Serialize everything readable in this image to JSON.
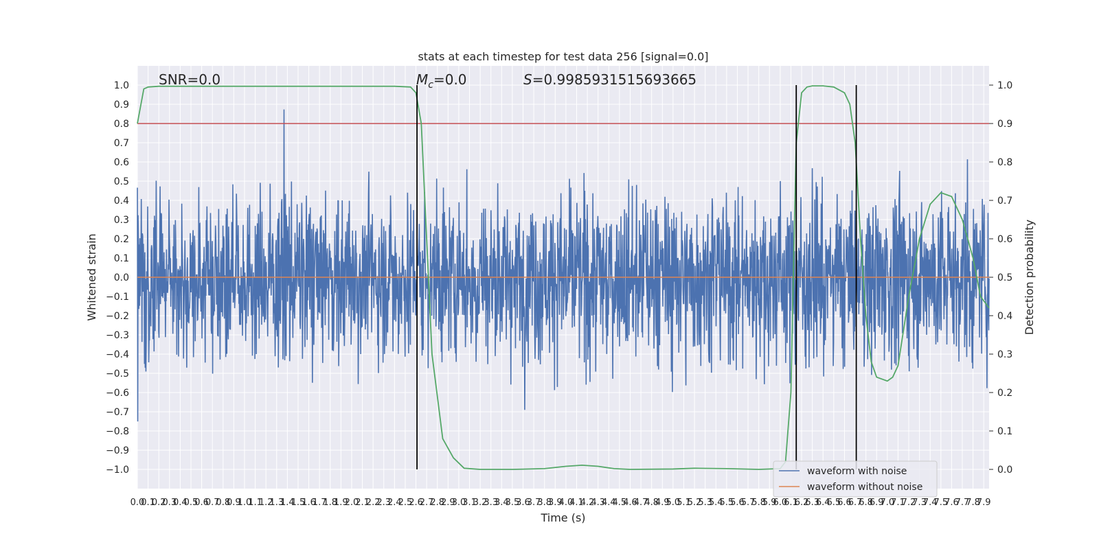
{
  "chart_data": {
    "type": "line",
    "title": "stats at each timestep for test data 256 [signal=0.0]",
    "xlabel": "Time (s)",
    "ylabel": "Whitened strain",
    "ylabel_right": "Detection probability",
    "xlim": [
      0.0,
      7.95
    ],
    "ylim": [
      -1.1,
      1.1
    ],
    "ylim_right": [
      -0.05,
      1.05
    ],
    "x_ticks": [
      "0.0",
      "0.1",
      "0.2",
      "0.3",
      "0.4",
      "0.5",
      "0.6",
      "0.7",
      "0.8",
      "0.9",
      "1.0",
      "1.1",
      "1.2",
      "1.3",
      "1.4",
      "1.5",
      "1.6",
      "1.7",
      "1.8",
      "1.9",
      "2.0",
      "2.1",
      "2.2",
      "2.3",
      "2.4",
      "2.5",
      "2.6",
      "2.7",
      "2.8",
      "2.9",
      "3.0",
      "3.1",
      "3.2",
      "3.3",
      "3.4",
      "3.5",
      "3.6",
      "3.7",
      "3.8",
      "3.9",
      "4.0",
      "4.1",
      "4.2",
      "4.3",
      "4.4",
      "4.5",
      "4.6",
      "4.7",
      "4.8",
      "4.9",
      "5.0",
      "5.1",
      "5.2",
      "5.3",
      "5.4",
      "5.5",
      "5.6",
      "5.7",
      "5.8",
      "5.9",
      "6.0",
      "6.1",
      "6.2",
      "6.3",
      "6.4",
      "6.5",
      "6.6",
      "6.7",
      "6.8",
      "6.9",
      "7.0",
      "7.1",
      "7.2",
      "7.3",
      "7.4",
      "7.5",
      "7.6",
      "7.7",
      "7.8",
      "7.9"
    ],
    "y_ticks": [
      "−1.0",
      "−0.9",
      "−0.8",
      "−0.7",
      "−0.6",
      "−0.5",
      "−0.4",
      "−0.3",
      "−0.2",
      "−0.1",
      "0.0",
      "0.1",
      "0.2",
      "0.3",
      "0.4",
      "0.5",
      "0.6",
      "0.7",
      "0.8",
      "0.9",
      "1.0"
    ],
    "y_ticks_right": [
      "0.0",
      "0.1",
      "0.2",
      "0.3",
      "0.4",
      "0.5",
      "0.6",
      "0.7",
      "0.8",
      "0.9",
      "1.0"
    ],
    "grid": true,
    "legend_position": "lower-right",
    "series": [
      {
        "name": "waveform with noise",
        "axis": "left",
        "color": "#4c72b0",
        "kind": "noise",
        "amplitude": 0.3
      },
      {
        "name": "waveform without noise",
        "axis": "left",
        "color": "#dd8452",
        "kind": "flat",
        "value": 0.0
      }
    ],
    "probability_curve": {
      "axis": "right",
      "color": "#55a868",
      "x": [
        0.0,
        0.06,
        0.1,
        0.2,
        0.5,
        1.0,
        1.5,
        2.0,
        2.4,
        2.55,
        2.6,
        2.65,
        2.7,
        2.75,
        2.85,
        2.95,
        3.05,
        3.2,
        3.5,
        3.8,
        4.0,
        4.15,
        4.3,
        4.45,
        4.6,
        5.0,
        5.2,
        5.5,
        5.8,
        6.0,
        6.05,
        6.1,
        6.13,
        6.15,
        6.2,
        6.25,
        6.3,
        6.4,
        6.5,
        6.6,
        6.65,
        6.7,
        6.75,
        6.8,
        6.85,
        6.9,
        7.0,
        7.05,
        7.1,
        7.2,
        7.3,
        7.4,
        7.5,
        7.6,
        7.7,
        7.8,
        7.87,
        7.95
      ],
      "y": [
        0.9,
        0.99,
        0.995,
        0.997,
        0.997,
        0.997,
        0.997,
        0.997,
        0.997,
        0.995,
        0.98,
        0.9,
        0.6,
        0.3,
        0.08,
        0.03,
        0.003,
        0.0,
        0.0,
        0.002,
        0.008,
        0.011,
        0.008,
        0.002,
        0.0,
        0.001,
        0.003,
        0.002,
        0.0,
        0.002,
        0.02,
        0.2,
        0.6,
        0.85,
        0.98,
        0.995,
        0.998,
        0.998,
        0.995,
        0.98,
        0.95,
        0.85,
        0.6,
        0.4,
        0.28,
        0.24,
        0.23,
        0.24,
        0.27,
        0.45,
        0.6,
        0.69,
        0.72,
        0.71,
        0.65,
        0.55,
        0.45,
        0.42
      ]
    },
    "threshold": {
      "axis": "right",
      "value": 0.9,
      "color": "#c44e52"
    },
    "vlines": [
      {
        "x": 2.61,
        "y_from": -1.0,
        "y_to": 1.0,
        "axis": "left-x",
        "color": "#000000"
      },
      {
        "x": 6.15,
        "y_from": 0.0,
        "y_to": 1.0,
        "axis": "right",
        "color": "#000000"
      },
      {
        "x": 6.71,
        "y_from": 0.0,
        "y_to": 1.0,
        "axis": "right",
        "color": "#000000"
      }
    ],
    "annotations": {
      "snr": "SNR=0.0",
      "mc_symbol": "M",
      "mc_sub": "c",
      "mc_value": "=0.0",
      "s_symbol": "S",
      "s_value": "=0.9985931515693665"
    }
  }
}
